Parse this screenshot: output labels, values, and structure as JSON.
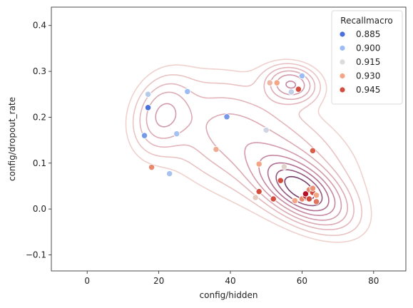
{
  "chart_data": {
    "type": "scatter",
    "xlabel": "config/hidden",
    "ylabel": "config/dropout_rate",
    "xlim": [
      -10,
      89
    ],
    "ylim": [
      -0.135,
      0.44
    ],
    "xticks": [
      0,
      20,
      40,
      60,
      80
    ],
    "yticks": [
      -0.1,
      0.0,
      0.1,
      0.2,
      0.3,
      0.4
    ],
    "ytick_labels": [
      "−0.1",
      "0.0",
      "0.1",
      "0.2",
      "0.3",
      "0.4"
    ],
    "legend": {
      "title": "Recallmacro",
      "position": "top-right",
      "entries": [
        {
          "label": "0.885",
          "color": "#4b6fdc"
        },
        {
          "label": "0.900",
          "color": "#9bbcf5"
        },
        {
          "label": "0.915",
          "color": "#dcdcdc"
        },
        {
          "label": "0.930",
          "color": "#f3a585"
        },
        {
          "label": "0.945",
          "color": "#d24d3e"
        }
      ]
    },
    "points": [
      {
        "x": 17,
        "y": 0.221,
        "recall": 0.884
      },
      {
        "x": 16,
        "y": 0.16,
        "recall": 0.893
      },
      {
        "x": 17,
        "y": 0.25,
        "recall": 0.906
      },
      {
        "x": 28,
        "y": 0.256,
        "recall": 0.9
      },
      {
        "x": 39,
        "y": 0.201,
        "recall": 0.893
      },
      {
        "x": 25,
        "y": 0.164,
        "recall": 0.903
      },
      {
        "x": 23,
        "y": 0.077,
        "recall": 0.903
      },
      {
        "x": 18,
        "y": 0.091,
        "recall": 0.935
      },
      {
        "x": 60,
        "y": 0.29,
        "recall": 0.9
      },
      {
        "x": 57,
        "y": 0.255,
        "recall": 0.909
      },
      {
        "x": 51,
        "y": 0.275,
        "recall": 0.925
      },
      {
        "x": 53,
        "y": 0.275,
        "recall": 0.93
      },
      {
        "x": 59,
        "y": 0.261,
        "recall": 0.945
      },
      {
        "x": 50,
        "y": 0.172,
        "recall": 0.912
      },
      {
        "x": 36,
        "y": 0.13,
        "recall": 0.928
      },
      {
        "x": 63,
        "y": 0.127,
        "recall": 0.942
      },
      {
        "x": 48,
        "y": 0.098,
        "recall": 0.93
      },
      {
        "x": 55,
        "y": 0.092,
        "recall": 0.918
      },
      {
        "x": 48,
        "y": 0.038,
        "recall": 0.945
      },
      {
        "x": 52,
        "y": 0.022,
        "recall": 0.945
      },
      {
        "x": 47,
        "y": 0.025,
        "recall": 0.92
      },
      {
        "x": 54,
        "y": 0.062,
        "recall": 0.945
      },
      {
        "x": 58,
        "y": 0.018,
        "recall": 0.93
      },
      {
        "x": 60,
        "y": 0.022,
        "recall": 0.935
      },
      {
        "x": 61,
        "y": 0.028,
        "recall": 0.948
      },
      {
        "x": 62,
        "y": 0.042,
        "recall": 0.935
      },
      {
        "x": 63,
        "y": 0.036,
        "recall": 0.945
      },
      {
        "x": 64,
        "y": 0.03,
        "recall": 0.93
      },
      {
        "x": 62,
        "y": 0.022,
        "recall": 0.945
      },
      {
        "x": 61,
        "y": 0.033,
        "recall": 0.955
      },
      {
        "x": 63,
        "y": 0.045,
        "recall": 0.933
      },
      {
        "x": 64,
        "y": 0.016,
        "recall": 0.938
      }
    ],
    "kde_components": [
      {
        "mx": 60,
        "my": 0.04,
        "sx": 7.5,
        "sy": 0.045,
        "rho": -0.55,
        "w": 1.0
      },
      {
        "mx": 57,
        "my": 0.272,
        "sx": 4.5,
        "sy": 0.025,
        "rho": -0.1,
        "w": 0.55
      },
      {
        "mx": 21,
        "my": 0.205,
        "sx": 5.0,
        "sy": 0.05,
        "rho": 0.2,
        "w": 0.38
      },
      {
        "mx": 36,
        "my": 0.185,
        "sx": 10.0,
        "sy": 0.07,
        "rho": 0.0,
        "w": 0.16
      },
      {
        "mx": 51,
        "my": 0.12,
        "sx": 14.0,
        "sy": 0.08,
        "rho": -0.4,
        "w": 0.3
      }
    ],
    "kde_levels": [
      0.05,
      0.1,
      0.17,
      0.25,
      0.35,
      0.47,
      0.6,
      0.74,
      0.88
    ],
    "kde_colors": [
      "#efd1cd",
      "#e9c3c3",
      "#e3b6bb",
      "#dcaab4",
      "#d29aab",
      "#c587a0",
      "#b06d90",
      "#93567e",
      "#753f6a"
    ]
  }
}
